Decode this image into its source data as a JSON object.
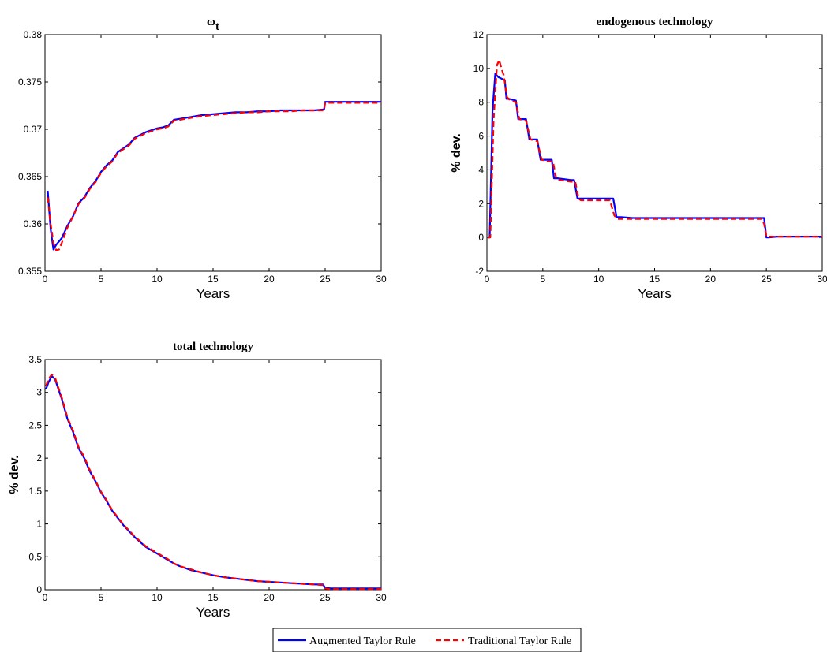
{
  "legend": {
    "entries": [
      {
        "label": "Augmented Taylor Rule",
        "color": "#0000ff",
        "style": "solid"
      },
      {
        "label": "Traditional Taylor Rule",
        "color": "#ff0000",
        "style": "dashed"
      }
    ],
    "placement": "bottom-center"
  },
  "chart_data": [
    {
      "type": "line",
      "title": "ω",
      "title_sub": "t",
      "xlabel": "Years",
      "ylabel": "",
      "xlim": [
        0,
        30
      ],
      "ylim": [
        0.355,
        0.38
      ],
      "xticks": [
        0,
        5,
        10,
        15,
        20,
        25,
        30
      ],
      "yticks": [
        0.355,
        0.36,
        0.365,
        0.37,
        0.375,
        0.38
      ],
      "ytick_labels": [
        "0.355",
        "0.36",
        "0.365",
        "0.37",
        "0.375",
        "0.38"
      ],
      "grid": false,
      "series": [
        {
          "name": "Augmented Taylor Rule",
          "color": "#0000ff",
          "dash": "",
          "x": [
            0.25,
            0.5,
            0.75,
            1.0,
            1.5,
            2.0,
            2.5,
            3.0,
            3.5,
            4.0,
            4.5,
            5.0,
            5.5,
            6.0,
            6.5,
            7.0,
            7.5,
            8.0,
            8.5,
            9.0,
            9.5,
            10.0,
            10.5,
            11.0,
            11.5,
            12.0,
            13.0,
            14.0,
            15.0,
            16.0,
            17.0,
            18.0,
            19.0,
            20.0,
            21.0,
            22.0,
            23.0,
            24.0,
            24.9,
            25.0,
            26.0,
            27.0,
            28.0,
            29.0,
            30.0
          ],
          "y": [
            0.3635,
            0.3595,
            0.3573,
            0.3578,
            0.3585,
            0.3598,
            0.3608,
            0.3622,
            0.3628,
            0.3638,
            0.3645,
            0.3655,
            0.3662,
            0.3667,
            0.3676,
            0.368,
            0.3684,
            0.3691,
            0.3694,
            0.3697,
            0.3699,
            0.3701,
            0.3702,
            0.3704,
            0.371,
            0.3711,
            0.3713,
            0.3715,
            0.3716,
            0.3717,
            0.3718,
            0.3718,
            0.3719,
            0.3719,
            0.372,
            0.372,
            0.372,
            0.372,
            0.3721,
            0.3729,
            0.3729,
            0.3729,
            0.3729,
            0.3729,
            0.3729
          ]
        },
        {
          "name": "Traditional Taylor Rule",
          "color": "#ff0000",
          "dash": "7,4",
          "x": [
            0.25,
            0.5,
            0.75,
            1.0,
            1.25,
            1.5,
            2.0,
            2.5,
            3.0,
            3.5,
            4.0,
            4.5,
            5.0,
            5.5,
            6.0,
            6.5,
            7.0,
            7.5,
            8.0,
            8.5,
            9.0,
            9.5,
            10.0,
            10.5,
            11.0,
            11.5,
            12.0,
            13.0,
            14.0,
            15.0,
            16.0,
            17.0,
            18.0,
            19.0,
            20.0,
            21.0,
            22.0,
            23.0,
            24.0,
            24.9,
            25.0,
            26.0,
            27.0,
            28.0,
            29.0,
            30.0
          ],
          "y": [
            0.3628,
            0.36,
            0.358,
            0.3572,
            0.3573,
            0.358,
            0.3596,
            0.3608,
            0.3621,
            0.3627,
            0.3637,
            0.3644,
            0.3654,
            0.3661,
            0.3666,
            0.3675,
            0.3679,
            0.3683,
            0.369,
            0.3693,
            0.3696,
            0.3698,
            0.37,
            0.3701,
            0.3703,
            0.3709,
            0.371,
            0.3712,
            0.3714,
            0.3715,
            0.3716,
            0.3717,
            0.3718,
            0.3718,
            0.3719,
            0.3719,
            0.3719,
            0.372,
            0.372,
            0.372,
            0.3728,
            0.3728,
            0.3728,
            0.3728,
            0.3728,
            0.3728
          ]
        }
      ]
    },
    {
      "type": "line",
      "title": "endogenous technology",
      "xlabel": "Years",
      "ylabel": "% dev.",
      "xlim": [
        0,
        30
      ],
      "ylim": [
        -2,
        12
      ],
      "xticks": [
        0,
        5,
        10,
        15,
        20,
        25,
        30
      ],
      "yticks": [
        -2,
        0,
        2,
        4,
        6,
        8,
        10,
        12
      ],
      "ytick_labels": [
        "-2",
        "0",
        "2",
        "4",
        "6",
        "8",
        "10",
        "12"
      ],
      "grid": false,
      "series": [
        {
          "name": "Augmented Taylor Rule",
          "color": "#0000ff",
          "dash": "",
          "x": [
            0.1,
            0.25,
            0.5,
            0.75,
            1.0,
            1.3,
            1.6,
            1.75,
            2.0,
            2.6,
            2.8,
            3.5,
            3.8,
            4.5,
            4.8,
            5.5,
            5.8,
            6.0,
            6.3,
            7.5,
            7.8,
            8.1,
            8.3,
            9.5,
            10.0,
            11.0,
            11.3,
            11.6,
            12.0,
            13.0,
            15.0,
            17.0,
            19.0,
            21.0,
            23.0,
            24.8,
            25.0,
            25.2,
            26.0,
            28.0,
            30.0
          ],
          "y": [
            0.0,
            0.0,
            7.5,
            9.7,
            9.5,
            9.4,
            9.3,
            8.2,
            8.2,
            8.1,
            7.0,
            7.0,
            5.8,
            5.8,
            4.6,
            4.6,
            4.6,
            3.5,
            3.5,
            3.4,
            3.4,
            2.3,
            2.3,
            2.3,
            2.3,
            2.3,
            2.3,
            1.2,
            1.2,
            1.15,
            1.15,
            1.15,
            1.15,
            1.15,
            1.15,
            1.15,
            0.0,
            0.0,
            0.05,
            0.05,
            0.05
          ]
        },
        {
          "name": "Traditional Taylor Rule",
          "color": "#ff0000",
          "dash": "7,4",
          "x": [
            0.1,
            0.3,
            0.6,
            0.9,
            1.1,
            1.3,
            1.5,
            1.8,
            2.1,
            2.6,
            2.9,
            3.5,
            3.9,
            4.5,
            4.9,
            5.5,
            5.9,
            6.2,
            6.5,
            7.5,
            7.9,
            8.2,
            8.4,
            9.5,
            10.0,
            11.0,
            11.4,
            11.7,
            12.0,
            13.0,
            15.0,
            17.0,
            19.0,
            21.0,
            23.0,
            24.6,
            24.8,
            25.0,
            26.0,
            28.0,
            30.0
          ],
          "y": [
            0.0,
            0.0,
            7.0,
            10.2,
            10.5,
            10.0,
            9.6,
            8.3,
            8.1,
            8.0,
            7.0,
            6.9,
            5.8,
            5.7,
            4.6,
            4.5,
            4.5,
            3.5,
            3.4,
            3.3,
            3.3,
            2.3,
            2.2,
            2.2,
            2.2,
            2.2,
            1.3,
            1.1,
            1.1,
            1.1,
            1.1,
            1.1,
            1.1,
            1.1,
            1.1,
            1.1,
            0.8,
            0.05,
            0.05,
            0.05,
            0.05
          ]
        }
      ]
    },
    {
      "type": "line",
      "title": "total technology",
      "xlabel": "Years",
      "ylabel": "% dev.",
      "xlim": [
        0,
        30
      ],
      "ylim": [
        0,
        3.5
      ],
      "xticks": [
        0,
        5,
        10,
        15,
        20,
        25,
        30
      ],
      "yticks": [
        0,
        0.5,
        1,
        1.5,
        2,
        2.5,
        3,
        3.5
      ],
      "ytick_labels": [
        "0",
        "0.5",
        "1",
        "1.5",
        "2",
        "2.5",
        "3",
        "3.5"
      ],
      "grid": false,
      "series": [
        {
          "name": "Augmented Taylor Rule",
          "color": "#0000ff",
          "dash": "",
          "x": [
            0.1,
            0.3,
            0.6,
            0.9,
            1.2,
            1.5,
            2.0,
            2.5,
            3.0,
            3.5,
            4.0,
            4.5,
            5.0,
            5.5,
            6.0,
            7.0,
            8.0,
            9.0,
            10.0,
            11.0,
            11.5,
            12.0,
            13.0,
            14.0,
            15.0,
            16.0,
            17.0,
            18.0,
            19.0,
            20.0,
            21.0,
            22.0,
            23.0,
            24.0,
            24.8,
            25.0,
            25.5,
            26.0,
            28.0,
            30.0
          ],
          "y": [
            3.05,
            3.15,
            3.25,
            3.2,
            3.05,
            2.9,
            2.6,
            2.4,
            2.15,
            2.0,
            1.8,
            1.65,
            1.48,
            1.35,
            1.2,
            0.98,
            0.8,
            0.65,
            0.55,
            0.45,
            0.4,
            0.36,
            0.3,
            0.26,
            0.22,
            0.19,
            0.17,
            0.15,
            0.13,
            0.12,
            0.11,
            0.1,
            0.09,
            0.08,
            0.08,
            0.03,
            0.02,
            0.02,
            0.02,
            0.02
          ]
        },
        {
          "name": "Traditional Taylor Rule",
          "color": "#ff0000",
          "dash": "7,4",
          "x": [
            0.1,
            0.3,
            0.6,
            0.9,
            1.2,
            1.5,
            2.0,
            2.5,
            3.0,
            3.5,
            4.0,
            4.5,
            5.0,
            5.5,
            6.0,
            7.0,
            8.0,
            9.0,
            10.0,
            11.0,
            11.5,
            12.0,
            13.0,
            14.0,
            15.0,
            16.0,
            17.0,
            18.0,
            19.0,
            20.0,
            21.0,
            22.0,
            23.0,
            24.0,
            24.8,
            25.0,
            25.5,
            26.0,
            28.0,
            30.0
          ],
          "y": [
            3.1,
            3.2,
            3.27,
            3.22,
            3.07,
            2.92,
            2.62,
            2.42,
            2.17,
            2.02,
            1.82,
            1.66,
            1.49,
            1.36,
            1.21,
            0.99,
            0.81,
            0.66,
            0.56,
            0.46,
            0.4,
            0.36,
            0.31,
            0.26,
            0.22,
            0.19,
            0.17,
            0.15,
            0.13,
            0.12,
            0.11,
            0.1,
            0.09,
            0.08,
            0.07,
            0.02,
            0.01,
            0.01,
            0.01,
            0.01
          ]
        }
      ]
    }
  ]
}
